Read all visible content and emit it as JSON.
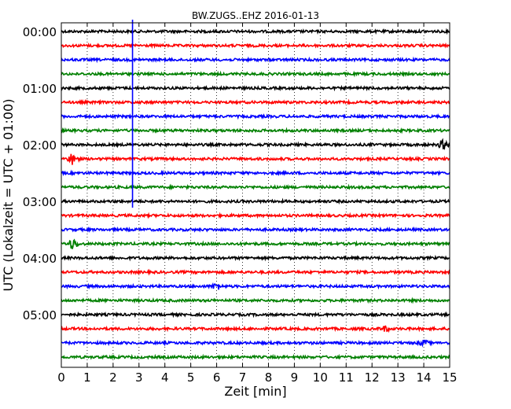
{
  "chart_data": {
    "type": "line",
    "title": "BW.ZUGS..EHZ 2016-01-13",
    "xlabel": "Zeit  [min]",
    "ylabel": "UTC (Lokalzeit = UTC + 01:00)",
    "xlim": [
      0,
      15
    ],
    "x_ticks": [
      "0",
      "1",
      "2",
      "3",
      "4",
      "5",
      "6",
      "7",
      "8",
      "9",
      "10",
      "11",
      "12",
      "13",
      "14",
      "15"
    ],
    "y_ticks": [
      "00:00",
      "01:00",
      "02:00",
      "03:00",
      "04:00",
      "05:00"
    ],
    "grid": "vertical-dotted",
    "traces_per_hour": 4,
    "trace_count": 24,
    "trace_colors": [
      "#000000",
      "#ff0000",
      "#0000ff",
      "#008000"
    ],
    "events": [
      {
        "trace": 9,
        "minute": 0.45,
        "amplitude": 8
      },
      {
        "trace": 8,
        "minute": 14.75,
        "amplitude": 5
      },
      {
        "trace": 15,
        "minute": 0.45,
        "amplitude": 7
      },
      {
        "trace": 18,
        "minute": 6.0,
        "amplitude": 4
      },
      {
        "trace": 22,
        "minute": 14.0,
        "amplitude": 3
      },
      {
        "trace": 21,
        "minute": 12.5,
        "amplitude": 3
      }
    ],
    "marker": {
      "minute": 2.75,
      "start_trace": 0,
      "end_trace": 12,
      "color": "#0000ff"
    }
  }
}
